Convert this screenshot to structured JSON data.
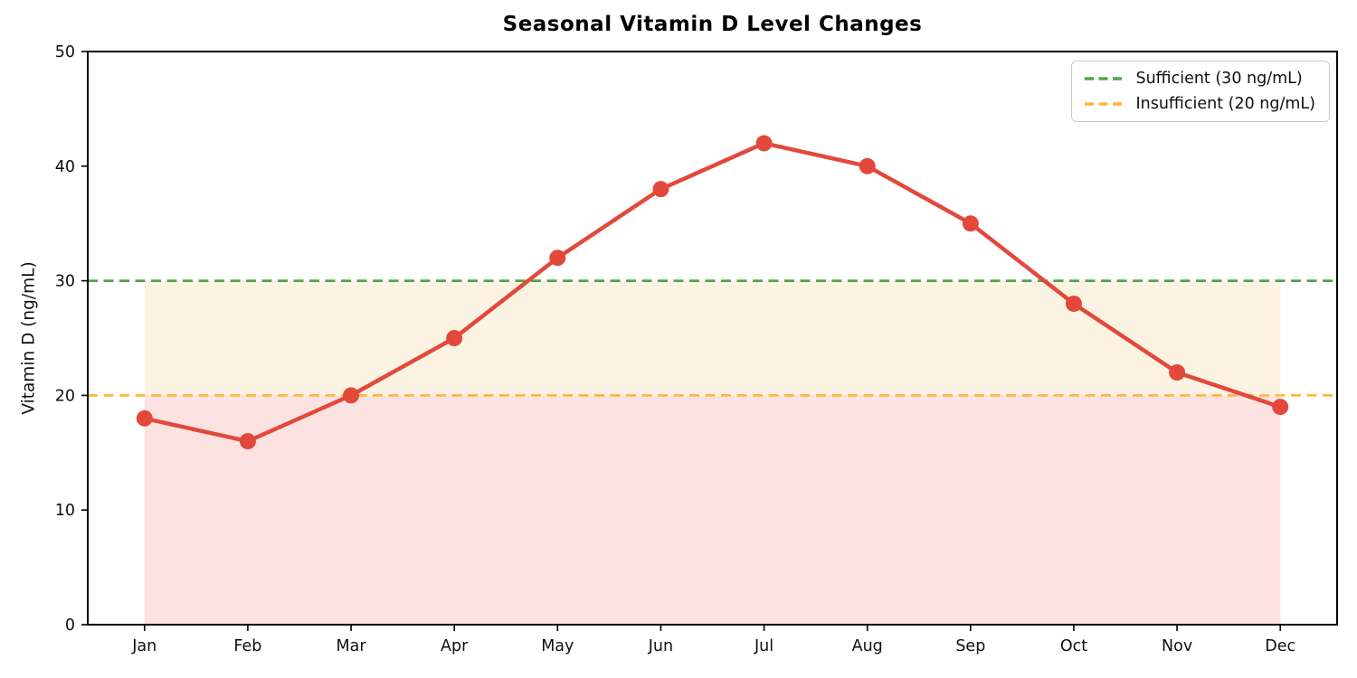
{
  "chart_data": {
    "type": "line",
    "title": "Seasonal Vitamin D Level Changes",
    "xlabel": "",
    "ylabel": "Vitamin D (ng/mL)",
    "categories": [
      "Jan",
      "Feb",
      "Mar",
      "Apr",
      "May",
      "Jun",
      "Jul",
      "Aug",
      "Sep",
      "Oct",
      "Nov",
      "Dec"
    ],
    "series": [
      {
        "name": "Vitamin D level",
        "values": [
          18,
          16,
          20,
          25,
          32,
          38,
          42,
          40,
          35,
          28,
          22,
          19
        ],
        "color": "#e2493b",
        "marker": "circle"
      }
    ],
    "ylim": [
      0,
      50
    ],
    "yticks": [
      0,
      10,
      20,
      30,
      40,
      50
    ],
    "reference_lines": [
      {
        "label": "Sufficient (30 ng/mL)",
        "value": 30,
        "color": "#4ca64c",
        "style": "dashed"
      },
      {
        "label": "Insufficient (20 ng/mL)",
        "value": 20,
        "color": "#ffb841",
        "style": "dashed"
      }
    ],
    "bands": [
      {
        "name": "insufficient-zone",
        "from": 20,
        "to": 30,
        "color": "#fdf3e3",
        "x_span": "Jan to Dec"
      },
      {
        "name": "deficient-zone",
        "from": 0,
        "to": 20,
        "color": "#fde2e2",
        "x_span": "Jan to Dec"
      }
    ],
    "legend_position": "upper right",
    "grid": false
  }
}
